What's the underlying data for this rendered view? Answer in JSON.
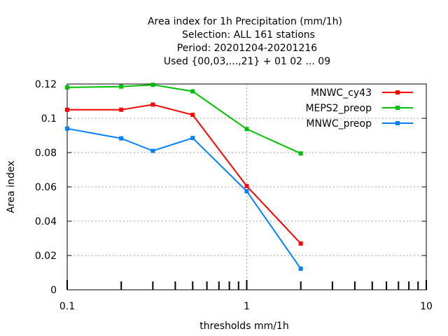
{
  "chart_data": {
    "type": "line",
    "title_lines": [
      "Area index  for 1h Precipitation (mm/1h)",
      "Selection: ALL    161 stations",
      "Period: 20201204-20201216",
      "Used {00,03,...,21} + 01 02 ... 09"
    ],
    "xlabel": "thresholds mm/1h",
    "ylabel": "Area index",
    "x_scale": "log",
    "xlim": [
      0.1,
      10
    ],
    "ylim": [
      0,
      0.12
    ],
    "x_ticks": [
      {
        "value": 0.1,
        "label": "0.1"
      },
      {
        "value": 1,
        "label": "1"
      },
      {
        "value": 10,
        "label": "10"
      }
    ],
    "y_ticks": [
      {
        "value": 0,
        "label": "0"
      },
      {
        "value": 0.02,
        "label": "0.02"
      },
      {
        "value": 0.04,
        "label": "0.04"
      },
      {
        "value": 0.06,
        "label": "0.06"
      },
      {
        "value": 0.08,
        "label": "0.08"
      },
      {
        "value": 0.1,
        "label": "0.1"
      },
      {
        "value": 0.12,
        "label": "0.12"
      }
    ],
    "grid": true,
    "legend_position": "top-right",
    "series": [
      {
        "name": "MNWC_cy43",
        "color": "#ff0000",
        "x": [
          0.1,
          0.2,
          0.3,
          0.5,
          1,
          2
        ],
        "y": [
          0.105,
          0.105,
          0.108,
          0.102,
          0.0605,
          0.027
        ]
      },
      {
        "name": "MEPS2_preop",
        "color": "#00c000",
        "x": [
          0.1,
          0.2,
          0.3,
          0.5,
          1,
          2
        ],
        "y": [
          0.118,
          0.1185,
          0.1195,
          0.1157,
          0.0937,
          0.0795
        ]
      },
      {
        "name": "MNWC_preop",
        "color": "#0080ff",
        "x": [
          0.1,
          0.2,
          0.3,
          0.5,
          1,
          2
        ],
        "y": [
          0.094,
          0.0883,
          0.081,
          0.0885,
          0.0575,
          0.0123
        ]
      }
    ]
  }
}
